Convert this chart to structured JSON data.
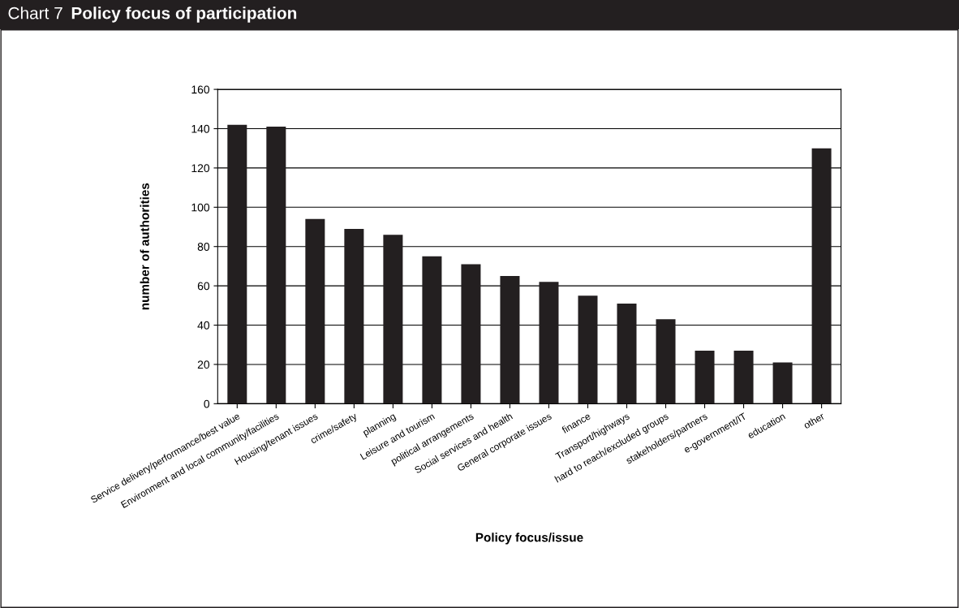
{
  "chart_data": {
    "type": "bar",
    "title": "Chart 7",
    "subtitle": "Policy focus of participation",
    "xlabel": "Policy focus/issue",
    "ylabel": "number of authorities",
    "categories": [
      "Service delivery/performance/best value",
      "Environment and local community/facilities",
      "Housing/tenant issues",
      "crime/safety",
      "planning",
      "Leisure and tourism",
      "political arrangements",
      "Social services and health",
      "General corporate issues",
      "finance",
      "Transport/highways",
      "hard to reach/excluded groups",
      "stakeholders/partners",
      "e-government/IT",
      "education",
      "other"
    ],
    "values": [
      142,
      141,
      94,
      89,
      86,
      75,
      71,
      65,
      62,
      55,
      51,
      43,
      27,
      27,
      21,
      130
    ],
    "color": "#231f20",
    "ylim": [
      0,
      160
    ],
    "yticks": [
      0,
      20,
      40,
      60,
      80,
      100,
      120,
      140,
      160
    ],
    "grid": "y"
  }
}
